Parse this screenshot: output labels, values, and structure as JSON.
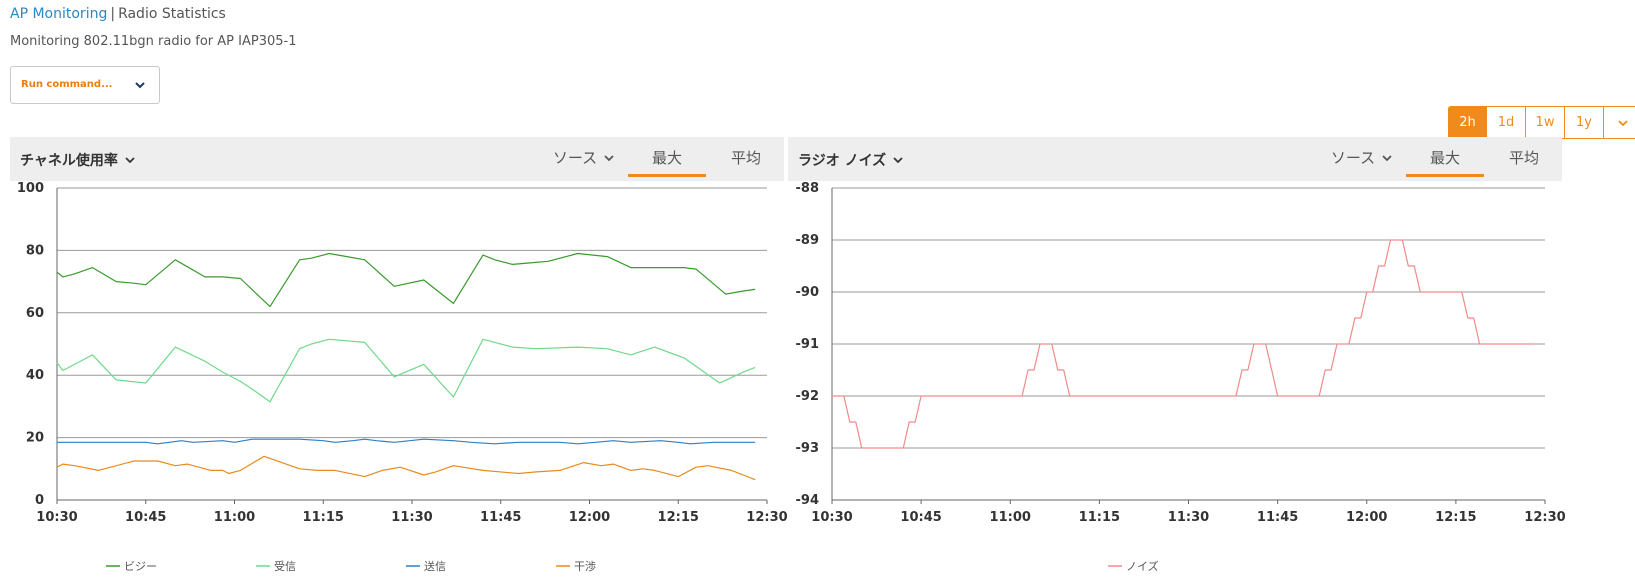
{
  "breadcrumb": {
    "link": "AP Monitoring",
    "separator": "|",
    "current": "Radio Statistics"
  },
  "subtitle": "Monitoring 802.11bgn radio for AP IAP305-1",
  "run_command": {
    "label": "Run command...",
    "icon": "chevron-down-icon"
  },
  "time_range": {
    "options": [
      "2h",
      "1d",
      "1w",
      "1y"
    ],
    "selected": "2h",
    "more_icon": "chevron-down-icon"
  },
  "colors": {
    "accent": "#f08a1c",
    "link": "#2e86c1",
    "busy": "#3a9a2e",
    "rx": "#6fd98a",
    "tx": "#2f7fc4",
    "interference": "#e98a1e",
    "noise": "#f08a8a"
  },
  "panels": {
    "channel": {
      "title": "チャネル使用率",
      "source_tab": "ソース",
      "max_tab": "最大",
      "avg_tab": "平均",
      "selected_tab": "最大"
    },
    "noise": {
      "title": "ラジオ ノイズ",
      "source_tab": "ソース",
      "max_tab": "最大",
      "avg_tab": "平均",
      "selected_tab": "最大"
    }
  },
  "chart_data": [
    {
      "type": "line",
      "title": "",
      "xlabel": "",
      "ylabel": "",
      "x_ticks": [
        "10:30",
        "10:45",
        "11:00",
        "11:15",
        "11:30",
        "11:45",
        "12:00",
        "12:15",
        "12:30"
      ],
      "x_range": [
        "10:30",
        "12:30"
      ],
      "ylim": [
        0,
        100
      ],
      "y_ticks": [
        0,
        20,
        40,
        60,
        80,
        100
      ],
      "grid": true,
      "legend_position": "bottom",
      "series": [
        {
          "name": "ビジー",
          "color": "#3a9a2e",
          "points": [
            [
              "10:30",
              73
            ],
            [
              "10:31",
              71.5
            ],
            [
              "10:33",
              72.5
            ],
            [
              "10:36",
              74.5
            ],
            [
              "10:40",
              70
            ],
            [
              "10:43",
              69.5
            ],
            [
              "10:45",
              69
            ],
            [
              "10:50",
              77
            ],
            [
              "10:55",
              71.5
            ],
            [
              "10:58",
              71.5
            ],
            [
              "11:01",
              71
            ],
            [
              "11:06",
              62
            ],
            [
              "11:11",
              77
            ],
            [
              "11:13",
              77.5
            ],
            [
              "11:16",
              79
            ],
            [
              "11:19",
              78
            ],
            [
              "11:22",
              77
            ],
            [
              "11:27",
              68.5
            ],
            [
              "11:32",
              70.5
            ],
            [
              "11:37",
              63
            ],
            [
              "11:42",
              78.5
            ],
            [
              "11:44",
              77
            ],
            [
              "11:47",
              75.5
            ],
            [
              "11:50",
              76
            ],
            [
              "11:53",
              76.5
            ],
            [
              "11:58",
              79
            ],
            [
              "12:03",
              78
            ],
            [
              "12:07",
              74.5
            ],
            [
              "12:10",
              74.5
            ],
            [
              "12:16",
              74.5
            ],
            [
              "12:18",
              74
            ],
            [
              "12:23",
              66
            ],
            [
              "12:26",
              67
            ],
            [
              "12:28",
              67.5
            ]
          ]
        },
        {
          "name": "受信",
          "color": "#6fd98a",
          "points": [
            [
              "10:30",
              44
            ],
            [
              "10:31",
              41.5
            ],
            [
              "10:36",
              46.5
            ],
            [
              "10:40",
              38.5
            ],
            [
              "10:45",
              37.5
            ],
            [
              "10:50",
              49
            ],
            [
              "10:55",
              44.5
            ],
            [
              "10:58",
              41
            ],
            [
              "11:01",
              38
            ],
            [
              "11:03",
              35.5
            ],
            [
              "11:06",
              31.5
            ],
            [
              "11:11",
              48.5
            ],
            [
              "11:13",
              50
            ],
            [
              "11:16",
              51.5
            ],
            [
              "11:22",
              50.5
            ],
            [
              "11:27",
              39.5
            ],
            [
              "11:32",
              43.5
            ],
            [
              "11:37",
              33
            ],
            [
              "11:42",
              51.5
            ],
            [
              "11:47",
              49
            ],
            [
              "11:51",
              48.5
            ],
            [
              "11:58",
              49
            ],
            [
              "12:03",
              48.5
            ],
            [
              "12:07",
              46.5
            ],
            [
              "12:11",
              49
            ],
            [
              "12:16",
              45.5
            ],
            [
              "12:22",
              37.5
            ],
            [
              "12:26",
              41
            ],
            [
              "12:28",
              42.5
            ]
          ]
        },
        {
          "name": "送信",
          "color": "#2f7fc4",
          "points": [
            [
              "10:30",
              18.5
            ],
            [
              "10:45",
              18.5
            ],
            [
              "10:47",
              18
            ],
            [
              "10:49",
              18.5
            ],
            [
              "10:51",
              19
            ],
            [
              "10:53",
              18.5
            ],
            [
              "10:58",
              19
            ],
            [
              "11:00",
              18.5
            ],
            [
              "11:03",
              19.5
            ],
            [
              "11:11",
              19.5
            ],
            [
              "11:15",
              19
            ],
            [
              "11:17",
              18.5
            ],
            [
              "11:20",
              19
            ],
            [
              "11:22",
              19.5
            ],
            [
              "11:24",
              19
            ],
            [
              "11:27",
              18.5
            ],
            [
              "11:32",
              19.5
            ],
            [
              "11:37",
              19
            ],
            [
              "11:40",
              18.5
            ],
            [
              "11:44",
              18
            ],
            [
              "11:48",
              18.5
            ],
            [
              "11:55",
              18.5
            ],
            [
              "11:58",
              18
            ],
            [
              "12:01",
              18.5
            ],
            [
              "12:04",
              19
            ],
            [
              "12:07",
              18.5
            ],
            [
              "12:12",
              19
            ],
            [
              "12:15",
              18.5
            ],
            [
              "12:17",
              18
            ],
            [
              "12:21",
              18.5
            ],
            [
              "12:28",
              18.5
            ]
          ]
        },
        {
          "name": "干渉",
          "color": "#e98a1e",
          "points": [
            [
              "10:30",
              10.5
            ],
            [
              "10:31",
              11.5
            ],
            [
              "10:33",
              11
            ],
            [
              "10:37",
              9.5
            ],
            [
              "10:43",
              12.5
            ],
            [
              "10:47",
              12.5
            ],
            [
              "10:50",
              11
            ],
            [
              "10:52",
              11.5
            ],
            [
              "10:54",
              10.5
            ],
            [
              "10:56",
              9.5
            ],
            [
              "10:58",
              9.5
            ],
            [
              "10:59",
              8.5
            ],
            [
              "11:01",
              9.5
            ],
            [
              "11:05",
              14
            ],
            [
              "11:11",
              10
            ],
            [
              "11:14",
              9.5
            ],
            [
              "11:17",
              9.5
            ],
            [
              "11:22",
              7.5
            ],
            [
              "11:25",
              9.5
            ],
            [
              "11:28",
              10.5
            ],
            [
              "11:32",
              8
            ],
            [
              "11:34",
              9
            ],
            [
              "11:37",
              11
            ],
            [
              "11:42",
              9.5
            ],
            [
              "11:48",
              8.5
            ],
            [
              "11:51",
              9
            ],
            [
              "11:55",
              9.5
            ],
            [
              "11:59",
              12
            ],
            [
              "12:02",
              11
            ],
            [
              "12:04",
              11.5
            ],
            [
              "12:07",
              9.5
            ],
            [
              "12:09",
              10
            ],
            [
              "12:11",
              9.5
            ],
            [
              "12:15",
              7.5
            ],
            [
              "12:18",
              10.5
            ],
            [
              "12:20",
              11
            ],
            [
              "12:24",
              9.5
            ],
            [
              "12:26",
              8
            ],
            [
              "12:28",
              6.5
            ]
          ]
        }
      ]
    },
    {
      "type": "line",
      "title": "",
      "xlabel": "",
      "ylabel": "",
      "x_ticks": [
        "10:30",
        "10:45",
        "11:00",
        "11:15",
        "11:30",
        "11:45",
        "12:00",
        "12:15",
        "12:30"
      ],
      "x_range": [
        "10:30",
        "12:30"
      ],
      "ylim": [
        -94,
        -88
      ],
      "y_ticks": [
        -94,
        -93,
        -92,
        -91,
        -90,
        -89,
        -88
      ],
      "grid": true,
      "legend_position": "bottom",
      "series": [
        {
          "name": "ノイズ",
          "color": "#f08a8a",
          "points": [
            [
              "10:30",
              -92
            ],
            [
              "10:32",
              -92
            ],
            [
              "10:33",
              -92.5
            ],
            [
              "10:34",
              -92.5
            ],
            [
              "10:35",
              -93
            ],
            [
              "10:42",
              -93
            ],
            [
              "10:43",
              -92.5
            ],
            [
              "10:44",
              -92.5
            ],
            [
              "10:45",
              -92
            ],
            [
              "11:02",
              -92
            ],
            [
              "11:03",
              -91.5
            ],
            [
              "11:04",
              -91.5
            ],
            [
              "11:05",
              -91
            ],
            [
              "11:07",
              -91
            ],
            [
              "11:08",
              -91.5
            ],
            [
              "11:09",
              -91.5
            ],
            [
              "11:10",
              -92
            ],
            [
              "11:38",
              -92
            ],
            [
              "11:39",
              -91.5
            ],
            [
              "11:40",
              -91.5
            ],
            [
              "11:41",
              -91
            ],
            [
              "11:43",
              -91
            ],
            [
              "11:44",
              -91.5
            ],
            [
              "11:45",
              -92
            ],
            [
              "11:52",
              -92
            ],
            [
              "11:53",
              -91.5
            ],
            [
              "11:54",
              -91.5
            ],
            [
              "11:55",
              -91
            ],
            [
              "11:57",
              -91
            ],
            [
              "11:58",
              -90.5
            ],
            [
              "11:59",
              -90.5
            ],
            [
              "12:00",
              -90
            ],
            [
              "12:01",
              -90
            ],
            [
              "12:02",
              -89.5
            ],
            [
              "12:03",
              -89.5
            ],
            [
              "12:04",
              -89
            ],
            [
              "12:06",
              -89
            ],
            [
              "12:07",
              -89.5
            ],
            [
              "12:08",
              -89.5
            ],
            [
              "12:09",
              -90
            ],
            [
              "12:16",
              -90
            ],
            [
              "12:17",
              -90.5
            ],
            [
              "12:18",
              -90.5
            ],
            [
              "12:19",
              -91
            ],
            [
              "12:28",
              -91
            ]
          ]
        }
      ]
    }
  ]
}
